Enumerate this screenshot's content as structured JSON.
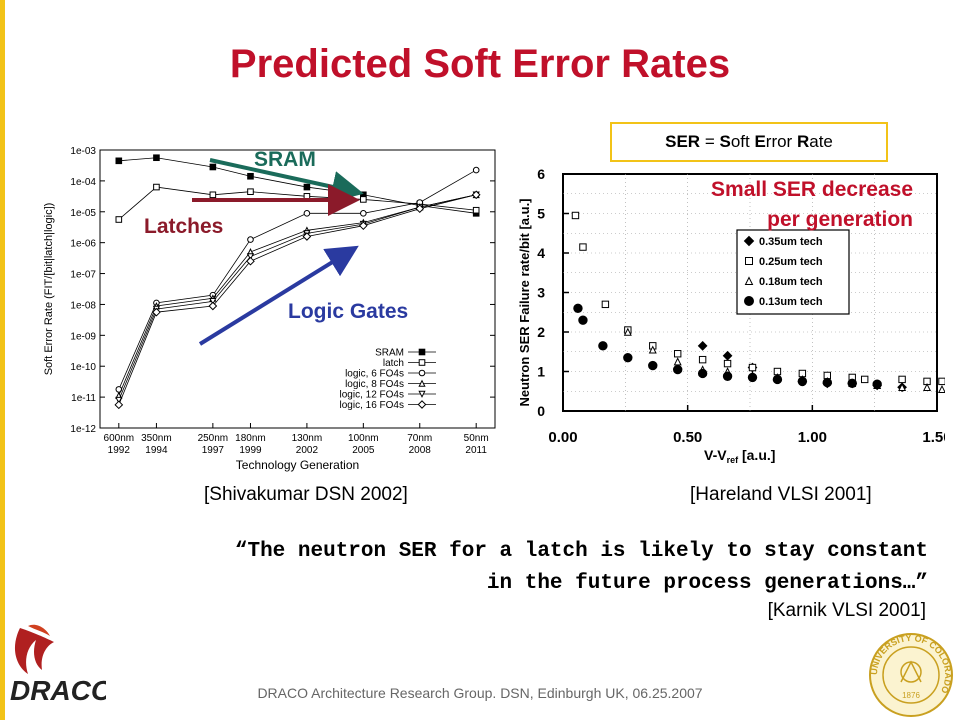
{
  "slide": {
    "title": "Predicted Soft Error Rates",
    "ser_box": {
      "ser": "SER",
      "eq": " = ",
      "s": "S",
      "oft": "oft ",
      "e": "E",
      "rror": "rror ",
      "r": "R",
      "ate": "ate"
    },
    "cite_left": "[Shivakumar DSN 2002]",
    "cite_right": "[Hareland VLSI 2001]",
    "quote_line1": "“The neutron SER for a latch is likely to stay constant",
    "quote_line2": "in the future process generations…”",
    "quote_cite": "[Karnik VLSI 2001]",
    "footer": "DRACO Architecture Research Group.  DSN, Edinburgh UK, 06.25.2007",
    "logo_text": "DRACO",
    "seal_text": "UNIVERSITY OF COLORADO",
    "seal_year": "1876",
    "colors": {
      "title": "#c0102a",
      "accent_gold": "#f2c318",
      "sram_arrow": "#1a6b5a",
      "latch_arrow": "#8b1a2a",
      "logic_arrow": "#2a3aa0"
    }
  },
  "chart_data": [
    {
      "type": "line",
      "ylabel": "Soft Error Rate (FIT/[bit|latch|logic])",
      "xlabel": "Technology Generation",
      "yscale": "log",
      "ylim": [
        "1e-12",
        "1e-03"
      ],
      "y_ticks": [
        "1e-03",
        "1e-04",
        "1e-05",
        "1e-06",
        "1e-07",
        "1e-08",
        "1e-09",
        "1e-10",
        "1e-11",
        "1e-12"
      ],
      "categories": [
        "600nm",
        "350nm",
        "250nm",
        "180nm",
        "130nm",
        "100nm",
        "70nm",
        "50nm"
      ],
      "category_years": [
        "1992",
        "1994",
        "1997",
        "1999",
        "2002",
        "2005",
        "2008",
        "2011"
      ],
      "category_positions": [
        1992,
        1994,
        1997,
        1999,
        2002,
        2005,
        2008,
        2011
      ],
      "series": [
        {
          "name": "SRAM",
          "marker": "square-filled",
          "log10_values": [
            -3.35,
            -3.25,
            -3.55,
            -3.85,
            -4.2,
            -4.45,
            -4.8,
            -5.05
          ]
        },
        {
          "name": "latch",
          "marker": "square-open",
          "log10_values": [
            -5.25,
            -4.2,
            -4.45,
            -4.35,
            -4.5,
            -4.6,
            -4.75,
            -4.95
          ]
        },
        {
          "name": "logic, 6 FO4s",
          "marker": "circle-open",
          "log10_values": [
            -10.75,
            -7.95,
            -7.7,
            -5.9,
            -5.05,
            -5.05,
            -4.7,
            -3.65
          ]
        },
        {
          "name": "logic, 8 FO4s",
          "marker": "triangle-open",
          "log10_values": [
            -10.95,
            -8.05,
            -7.8,
            -6.3,
            -5.6,
            -5.35,
            -4.85,
            -4.45
          ]
        },
        {
          "name": "logic, 12 FO4s",
          "marker": "triangle-down-open",
          "log10_values": [
            -11.1,
            -8.15,
            -7.9,
            -6.45,
            -5.7,
            -5.4,
            -4.85,
            -4.45
          ]
        },
        {
          "name": "logic, 16 FO4s",
          "marker": "diamond-open",
          "log10_values": [
            -11.25,
            -8.25,
            -8.05,
            -6.6,
            -5.8,
            -5.45,
            -4.9,
            -4.45
          ]
        }
      ],
      "legend_position": "bottom-right",
      "annotations": [
        "SRAM",
        "Latches",
        "Logic Gates"
      ]
    },
    {
      "type": "scatter",
      "ylabel": "Neutron SER Failure rate/bit [a.u.]",
      "xlabel": "V-V",
      "xlabel_sub": "ref",
      "xlabel_unit": " [a.u.]",
      "xlim": [
        0,
        1.5
      ],
      "ylim": [
        0,
        6
      ],
      "x_ticks": [
        "0.00",
        "0.50",
        "1.00",
        "1.50"
      ],
      "y_ticks": [
        "0",
        "1",
        "2",
        "3",
        "4",
        "5",
        "6"
      ],
      "series": [
        {
          "name": "0.35um tech",
          "marker": "diamond-filled",
          "points": [
            [
              0.56,
              1.65
            ],
            [
              0.66,
              1.4
            ],
            [
              0.76,
              1.1
            ],
            [
              0.96,
              0.75
            ],
            [
              1.06,
              0.7
            ],
            [
              1.16,
              0.7
            ],
            [
              1.26,
              0.65
            ],
            [
              1.36,
              0.6
            ]
          ]
        },
        {
          "name": "0.25um tech",
          "marker": "square-open",
          "points": [
            [
              0.05,
              4.95
            ],
            [
              0.08,
              4.15
            ],
            [
              0.17,
              2.7
            ],
            [
              0.26,
              2.05
            ],
            [
              0.36,
              1.65
            ],
            [
              0.46,
              1.45
            ],
            [
              0.56,
              1.3
            ],
            [
              0.66,
              1.2
            ],
            [
              0.76,
              1.1
            ],
            [
              0.86,
              1.0
            ],
            [
              0.96,
              0.95
            ],
            [
              1.06,
              0.9
            ],
            [
              1.16,
              0.85
            ],
            [
              1.21,
              0.8
            ],
            [
              1.36,
              0.8
            ],
            [
              1.46,
              0.75
            ],
            [
              1.52,
              0.75
            ]
          ]
        },
        {
          "name": "0.18um tech",
          "marker": "triangle-open",
          "points": [
            [
              0.26,
              2.0
            ],
            [
              0.36,
              1.55
            ],
            [
              0.46,
              1.25
            ],
            [
              0.56,
              1.05
            ],
            [
              0.66,
              1.0
            ],
            [
              0.76,
              0.9
            ],
            [
              0.86,
              0.85
            ],
            [
              0.96,
              0.8
            ],
            [
              1.06,
              0.75
            ],
            [
              1.16,
              0.7
            ],
            [
              1.26,
              0.65
            ],
            [
              1.36,
              0.6
            ],
            [
              1.46,
              0.6
            ],
            [
              1.52,
              0.55
            ]
          ]
        },
        {
          "name": "0.13um tech",
          "marker": "circle-filled",
          "points": [
            [
              0.06,
              2.6
            ],
            [
              0.08,
              2.3
            ],
            [
              0.16,
              1.65
            ],
            [
              0.26,
              1.35
            ],
            [
              0.36,
              1.15
            ],
            [
              0.46,
              1.05
            ],
            [
              0.56,
              0.95
            ],
            [
              0.66,
              0.88
            ],
            [
              0.76,
              0.85
            ],
            [
              0.86,
              0.8
            ],
            [
              0.96,
              0.75
            ],
            [
              1.06,
              0.72
            ],
            [
              1.16,
              0.7
            ],
            [
              1.26,
              0.68
            ]
          ]
        }
      ],
      "legend_position": "top-right",
      "annotation": [
        "Small SER decrease",
        "per generation"
      ]
    }
  ]
}
